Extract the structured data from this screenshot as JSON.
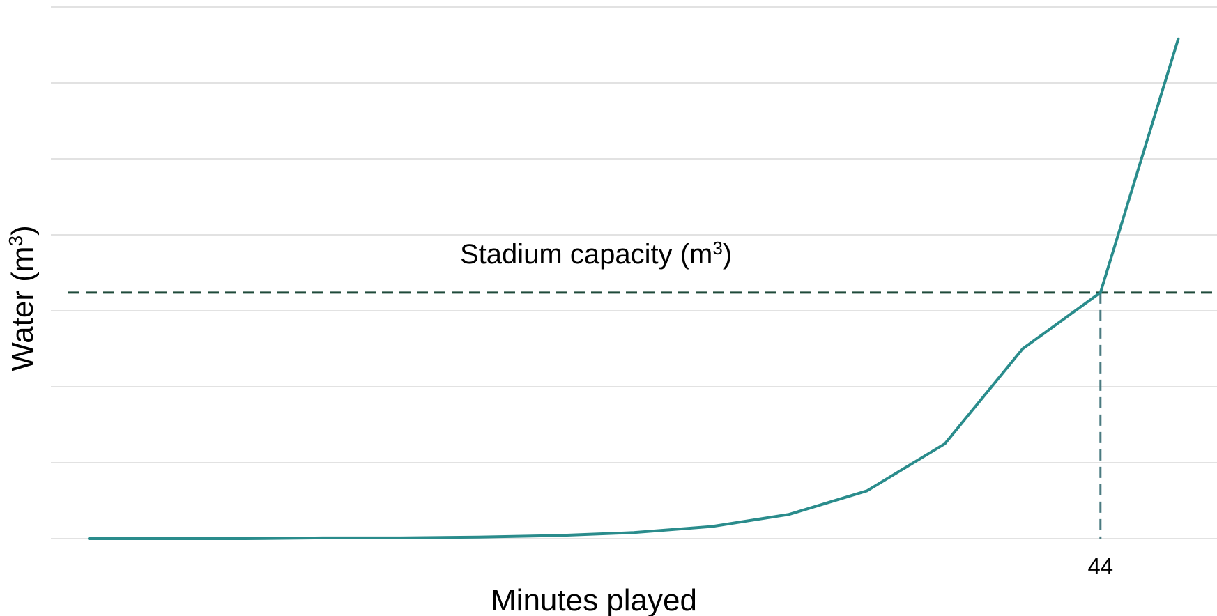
{
  "chart_data": {
    "type": "line",
    "xlabel": "Minutes played",
    "ylabel": "Water (m",
    "ylabel_sup": "3",
    "ylabel_end": ")",
    "x_range": [
      0,
      45
    ],
    "y_range": [
      0,
      7
    ],
    "x_ticks_shown": [
      "44"
    ],
    "grid": "horizontal",
    "series": [
      {
        "x": [
          0,
          1,
          2,
          3,
          4,
          5,
          6,
          7,
          8,
          9,
          10,
          11,
          12,
          13,
          14
        ],
        "y": [
          0,
          0,
          0,
          0.01,
          0.01,
          0.02,
          0.04,
          0.08,
          0.16,
          0.32,
          0.63,
          1.25,
          2.5,
          3.24,
          6.58
        ],
        "color": "#2a8c8c"
      }
    ],
    "annotation": {
      "text": "Stadium capacity (m",
      "sup": "3",
      "text_end": ")",
      "y_value": 3.24,
      "line_color": "#1f4a3a",
      "x_marker": "44",
      "x_marker_color": "#4a7a80"
    }
  }
}
